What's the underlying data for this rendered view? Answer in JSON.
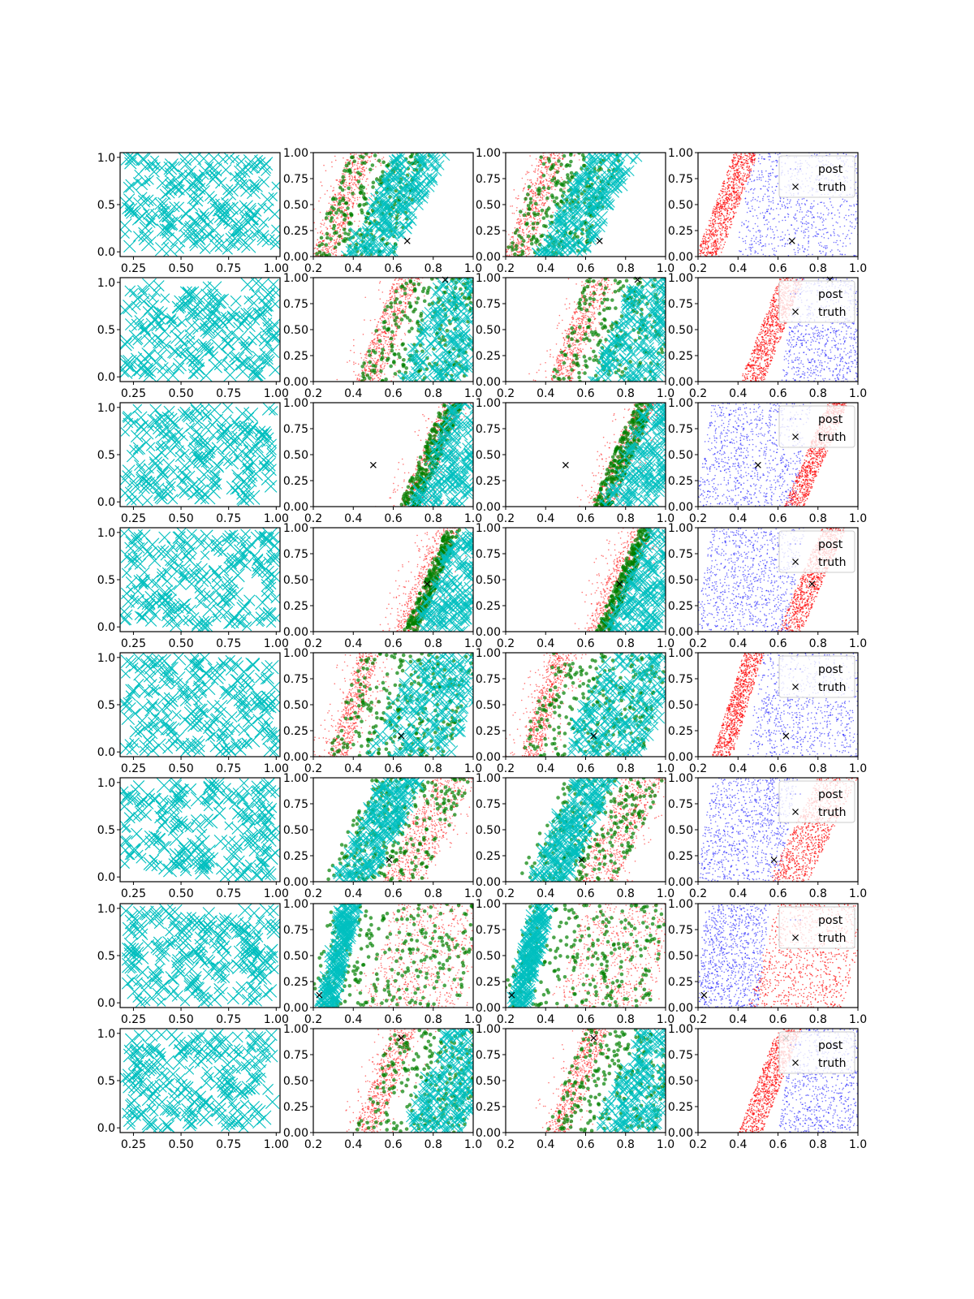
{
  "chart_data": {
    "type": "scatter",
    "layout": {
      "rows": 8,
      "cols": 4
    },
    "colors": {
      "cross": "#00bfbf",
      "green": "#008000",
      "red": "#ff0000",
      "blue": "#0000ff",
      "truth": "#000000"
    },
    "axes": {
      "col0": {
        "xlim": [
          0.18,
          1.02
        ],
        "ylim": [
          -0.05,
          1.05
        ],
        "xticks": [
          "0.25",
          "0.50",
          "0.75",
          "1.00"
        ],
        "xtick_values": [
          0.25,
          0.5,
          0.75,
          1.0
        ],
        "yticks": [
          "0.0",
          "0.5",
          "1.0"
        ],
        "ytick_values": [
          0.0,
          0.5,
          1.0
        ]
      },
      "colN": {
        "xlim": [
          0.2,
          1.0
        ],
        "ylim": [
          0.0,
          1.0
        ],
        "xticks": [
          "0.2",
          "0.4",
          "0.6",
          "0.8",
          "1.0"
        ],
        "xtick_values": [
          0.2,
          0.4,
          0.6,
          0.8,
          1.0
        ],
        "yticks": [
          "0.00",
          "0.25",
          "0.50",
          "0.75",
          "1.00"
        ],
        "ytick_values": [
          0.0,
          0.25,
          0.5,
          0.75,
          1.0
        ]
      }
    },
    "legend": {
      "entries": [
        "post",
        "truth"
      ],
      "placement": "top-right",
      "panel_column": 3
    },
    "truth": [
      {
        "row": 1,
        "x": 0.67,
        "y": 0.15
      },
      {
        "row": 2,
        "x": 0.86,
        "y": 0.98
      },
      {
        "row": 3,
        "x": 0.5,
        "y": 0.4
      },
      {
        "row": 4,
        "x": 0.77,
        "y": 0.46
      },
      {
        "row": 5,
        "x": 0.64,
        "y": 0.2
      },
      {
        "row": 6,
        "x": 0.58,
        "y": 0.21
      },
      {
        "row": 7,
        "x": 0.23,
        "y": 0.12
      },
      {
        "row": 8,
        "x": 0.64,
        "y": 0.91
      }
    ],
    "bands": [
      {
        "row": 1,
        "red": [
          0.19,
          0.31,
          0.19
        ],
        "cyan": [
          0.35,
          0.6,
          0.27
        ],
        "split": "red-left"
      },
      {
        "row": 2,
        "red": [
          0.41,
          0.53,
          0.2
        ],
        "cyan": [
          0.61,
          0.95,
          0.24
        ],
        "split": "red-left"
      },
      {
        "row": 3,
        "red": [
          0.63,
          0.73,
          0.22
        ],
        "cyan": [
          0.68,
          0.95,
          0.22
        ],
        "split": "red-right"
      },
      {
        "row": 4,
        "red": [
          0.6,
          0.72,
          0.22
        ],
        "cyan": [
          0.7,
          0.95,
          0.22
        ],
        "split": "red-right"
      },
      {
        "row": 5,
        "red": [
          0.27,
          0.37,
          0.16
        ],
        "cyan": [
          0.47,
          0.88,
          0.24
        ],
        "split": "red-left"
      },
      {
        "row": 6,
        "red": [
          0.55,
          0.75,
          0.25
        ],
        "cyan": [
          0.3,
          0.5,
          0.25
        ],
        "split": "red-right"
      },
      {
        "row": 7,
        "red": [
          0.45,
          0.92,
          0.15
        ],
        "cyan": [
          0.22,
          0.31,
          0.12
        ],
        "split": "red-right"
      },
      {
        "row": 8,
        "red": [
          0.4,
          0.52,
          0.2
        ],
        "cyan": [
          0.65,
          0.95,
          0.22
        ],
        "split": "red-left"
      }
    ]
  }
}
